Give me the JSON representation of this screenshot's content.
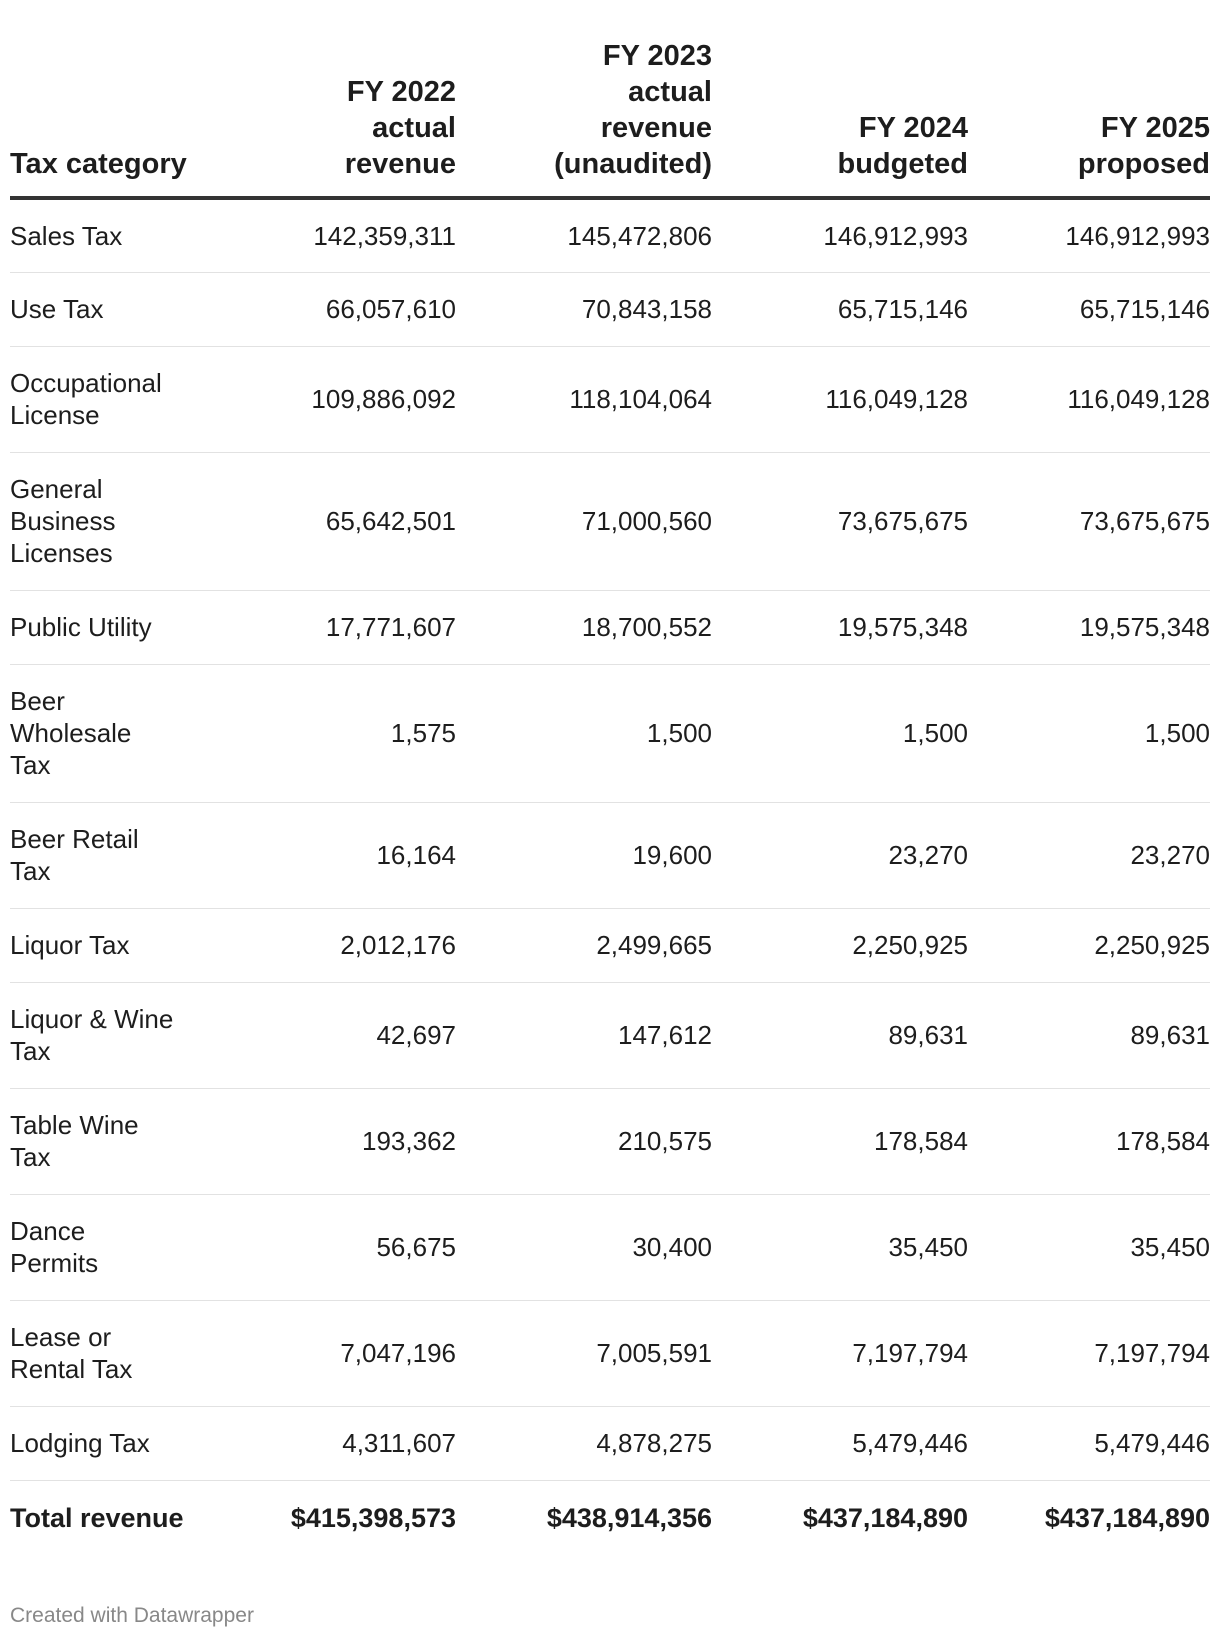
{
  "chart_data": {
    "type": "table",
    "columns": [
      "Tax category",
      "FY 2022\nactual\nrevenue",
      "FY 2023\nactual\nrevenue\n(unaudited)",
      "FY 2024\nbudgeted",
      "FY 2025\nproposed"
    ],
    "rows": [
      {
        "category": "Sales Tax",
        "fy2022": "142,359,311",
        "fy2023": "145,472,806",
        "fy2024": "146,912,993",
        "fy2025": "146,912,993"
      },
      {
        "category": "Use Tax",
        "fy2022": "66,057,610",
        "fy2023": "70,843,158",
        "fy2024": "65,715,146",
        "fy2025": "65,715,146"
      },
      {
        "category": "Occupational\nLicense",
        "fy2022": "109,886,092",
        "fy2023": "118,104,064",
        "fy2024": "116,049,128",
        "fy2025": "116,049,128"
      },
      {
        "category": "General\nBusiness\nLicenses",
        "fy2022": "65,642,501",
        "fy2023": "71,000,560",
        "fy2024": "73,675,675",
        "fy2025": "73,675,675"
      },
      {
        "category": "Public Utility",
        "fy2022": "17,771,607",
        "fy2023": "18,700,552",
        "fy2024": "19,575,348",
        "fy2025": "19,575,348"
      },
      {
        "category": "Beer\nWholesale\nTax",
        "fy2022": "1,575",
        "fy2023": "1,500",
        "fy2024": "1,500",
        "fy2025": "1,500"
      },
      {
        "category": "Beer Retail\nTax",
        "fy2022": "16,164",
        "fy2023": "19,600",
        "fy2024": "23,270",
        "fy2025": "23,270"
      },
      {
        "category": "Liquor Tax",
        "fy2022": "2,012,176",
        "fy2023": "2,499,665",
        "fy2024": "2,250,925",
        "fy2025": "2,250,925"
      },
      {
        "category": "Liquor & Wine\nTax",
        "fy2022": "42,697",
        "fy2023": "147,612",
        "fy2024": "89,631",
        "fy2025": "89,631"
      },
      {
        "category": "Table Wine\nTax",
        "fy2022": "193,362",
        "fy2023": "210,575",
        "fy2024": "178,584",
        "fy2025": "178,584"
      },
      {
        "category": "Dance\nPermits",
        "fy2022": "56,675",
        "fy2023": "30,400",
        "fy2024": "35,450",
        "fy2025": "35,450"
      },
      {
        "category": "Lease or\nRental Tax",
        "fy2022": "7,047,196",
        "fy2023": "7,005,591",
        "fy2024": "7,197,794",
        "fy2025": "7,197,794"
      },
      {
        "category": "Lodging Tax",
        "fy2022": "4,311,607",
        "fy2023": "4,878,275",
        "fy2024": "5,479,446",
        "fy2025": "5,479,446"
      }
    ],
    "total": {
      "category": "Total revenue",
      "fy2022": "$415,398,573",
      "fy2023": "$438,914,356",
      "fy2024": "$437,184,890",
      "fy2025": "$437,184,890"
    }
  },
  "footer": {
    "credit": "Created with Datawrapper"
  }
}
